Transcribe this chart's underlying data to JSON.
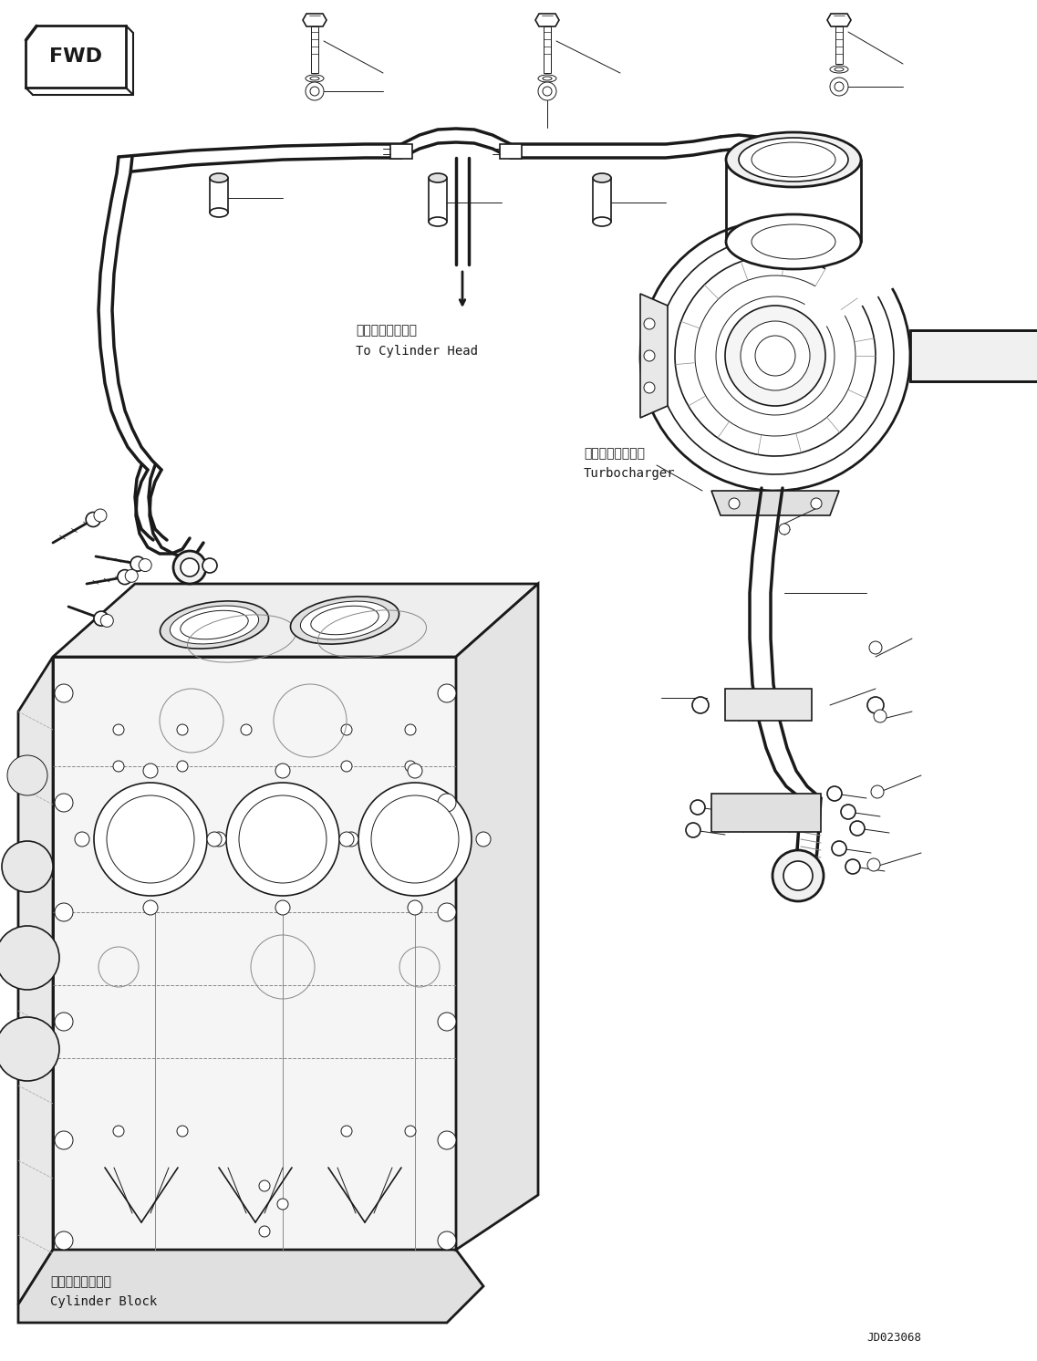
{
  "background_color": "#ffffff",
  "figsize": [
    11.37,
    14.92
  ],
  "dpi": 100,
  "texts": {
    "cylinder_head_jp": "シリンダヘッドへ",
    "cylinder_head_en": "To Cylinder Head",
    "turbo_jp": "ターボチャージャ",
    "turbo_en": "Turbocharger",
    "block_jp": "シリンダブロック",
    "block_en": "Cylinder Block",
    "drawing_num": "JD023068"
  },
  "fwd_text": "FWD",
  "line_color": "#1a1a1a",
  "line_color_light": "#555555"
}
